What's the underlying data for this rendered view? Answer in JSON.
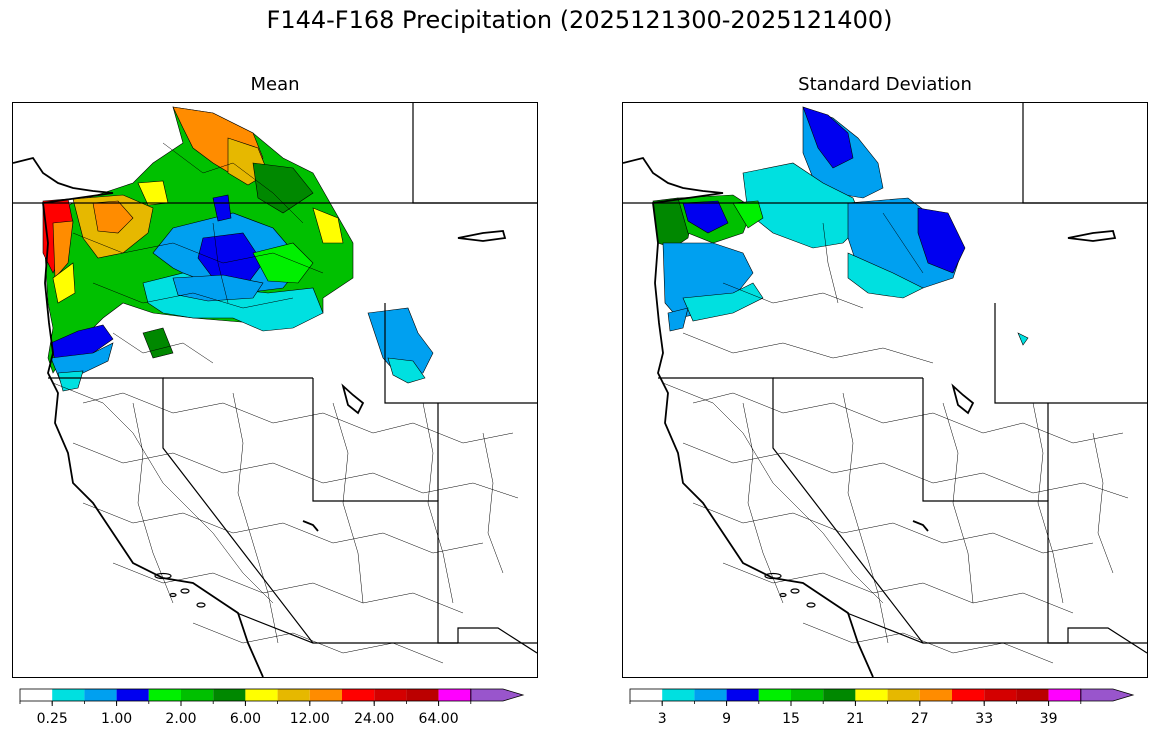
{
  "title": "F144-F168 Precipitation (2025121300-2025121400)",
  "panels": {
    "mean": {
      "title": "Mean"
    },
    "std": {
      "title": "Standard Deviation"
    }
  },
  "colorbar_colors": [
    "#ffffff",
    "#00e0e0",
    "#00a0f0",
    "#0000f0",
    "#00f000",
    "#00c000",
    "#008800",
    "#ffff00",
    "#e6b800",
    "#ff8c00",
    "#ff0000",
    "#d40000",
    "#bb0000",
    "#ff00ff",
    "#9955cc"
  ],
  "colorbars": {
    "mean": {
      "labels": [
        "0.25",
        "1.00",
        "2.00",
        "6.00",
        "12.00",
        "24.00",
        "64.00"
      ]
    },
    "std": {
      "labels": [
        "3",
        "9",
        "15",
        "21",
        "27",
        "33",
        "39"
      ]
    }
  }
}
